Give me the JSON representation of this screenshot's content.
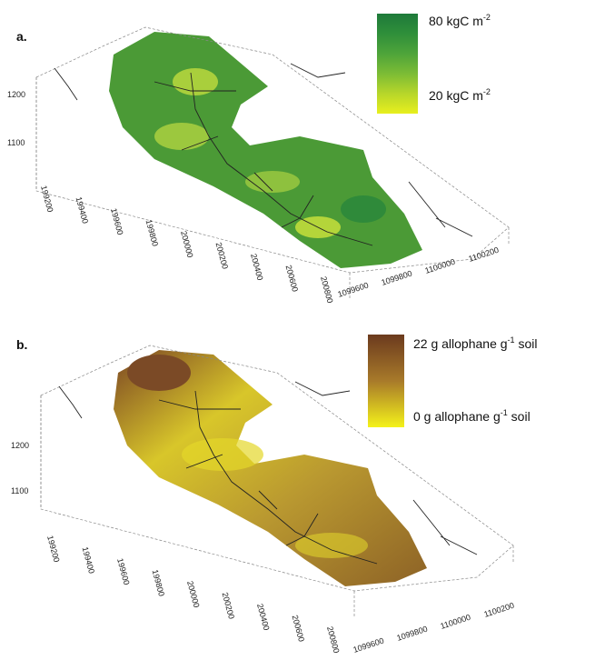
{
  "panels": [
    {
      "label": "a.",
      "legend": {
        "top": {
          "text": "80 kgC m",
          "sup": "-2"
        },
        "bottom": {
          "text": "20 kgC m",
          "sup": "-2"
        }
      },
      "z_ticks": [
        "1200",
        "1100"
      ],
      "x_ticks": [
        "199200",
        "199400",
        "199600",
        "199800",
        "200000",
        "200200",
        "200400",
        "200600",
        "200800"
      ],
      "y_ticks": [
        "1099600",
        "1099800",
        "1100000",
        "1100200"
      ]
    },
    {
      "label": "b.",
      "legend": {
        "top": {
          "text": "22 g allophane g",
          "sup": "-1",
          "tail": " soil"
        },
        "bottom": {
          "text": "0 g allophane g",
          "sup": "-1",
          "tail": " soil"
        }
      },
      "z_ticks": [
        "1200",
        "1100"
      ],
      "x_ticks": [
        "199200",
        "199400",
        "199600",
        "199800",
        "200000",
        "200200",
        "200400",
        "200600",
        "200800"
      ],
      "y_ticks": [
        "1099600",
        "1099800",
        "1100000",
        "1100200"
      ]
    }
  ]
}
